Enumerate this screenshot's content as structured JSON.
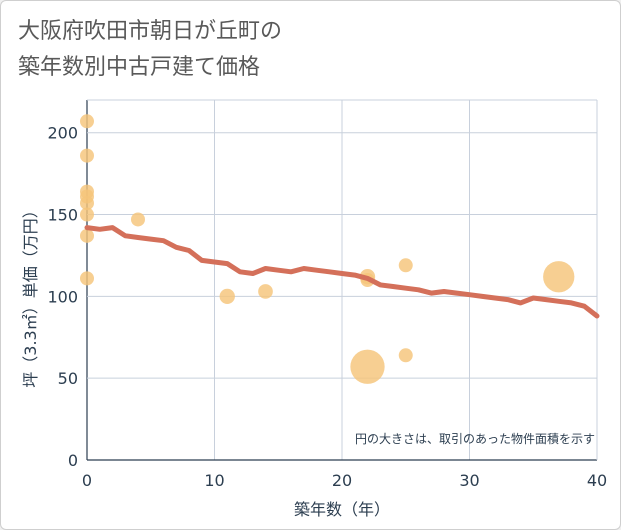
{
  "title_lines": [
    "大阪府吹田市朝日が丘町の",
    "築年数別中古戸建て価格"
  ],
  "chart_data": {
    "type": "scatter",
    "title": "大阪府吹田市朝日が丘町の築年数別中古戸建て価格",
    "xlabel": "築年数（年）",
    "ylabel": "坪（3.3㎡）単価（万円）",
    "xlim": [
      0,
      40
    ],
    "ylim": [
      0,
      220
    ],
    "xticks": [
      0,
      10,
      20,
      30,
      40
    ],
    "yticks": [
      0,
      50,
      100,
      150,
      200
    ],
    "grid": true,
    "note": "円の大きさは、取引のあった物件面積を示す",
    "bubble_color": "#f5c57a",
    "line_color": "#d4705a",
    "points": [
      {
        "x": 0,
        "y": 207,
        "size": 1
      },
      {
        "x": 0,
        "y": 186,
        "size": 1
      },
      {
        "x": 0,
        "y": 164,
        "size": 1
      },
      {
        "x": 0,
        "y": 161,
        "size": 1
      },
      {
        "x": 0,
        "y": 157,
        "size": 1
      },
      {
        "x": 0,
        "y": 150,
        "size": 1
      },
      {
        "x": 0,
        "y": 137,
        "size": 1
      },
      {
        "x": 0,
        "y": 111,
        "size": 1
      },
      {
        "x": 4,
        "y": 147,
        "size": 1
      },
      {
        "x": 11,
        "y": 100,
        "size": 1.2
      },
      {
        "x": 14,
        "y": 103,
        "size": 1.1
      },
      {
        "x": 22,
        "y": 112,
        "size": 1.2
      },
      {
        "x": 22,
        "y": 110,
        "size": 1
      },
      {
        "x": 22,
        "y": 57,
        "size": 6
      },
      {
        "x": 25,
        "y": 119,
        "size": 1
      },
      {
        "x": 25,
        "y": 64,
        "size": 1
      },
      {
        "x": 37,
        "y": 112,
        "size": 5
      }
    ],
    "trend": {
      "x": [
        0,
        1,
        2,
        3,
        4,
        5,
        6,
        7,
        8,
        9,
        10,
        11,
        12,
        13,
        14,
        15,
        16,
        17,
        18,
        19,
        20,
        21,
        22,
        23,
        24,
        25,
        26,
        27,
        28,
        29,
        30,
        31,
        32,
        33,
        34,
        35,
        36,
        37,
        38,
        39,
        40
      ],
      "y": [
        142,
        141,
        142,
        137,
        136,
        135,
        134,
        130,
        128,
        122,
        121,
        120,
        115,
        114,
        117,
        116,
        115,
        117,
        116,
        115,
        114,
        113,
        111,
        107,
        106,
        105,
        104,
        102,
        103,
        102,
        101,
        100,
        99,
        98,
        96,
        99,
        98,
        97,
        96,
        94,
        88
      ]
    }
  }
}
